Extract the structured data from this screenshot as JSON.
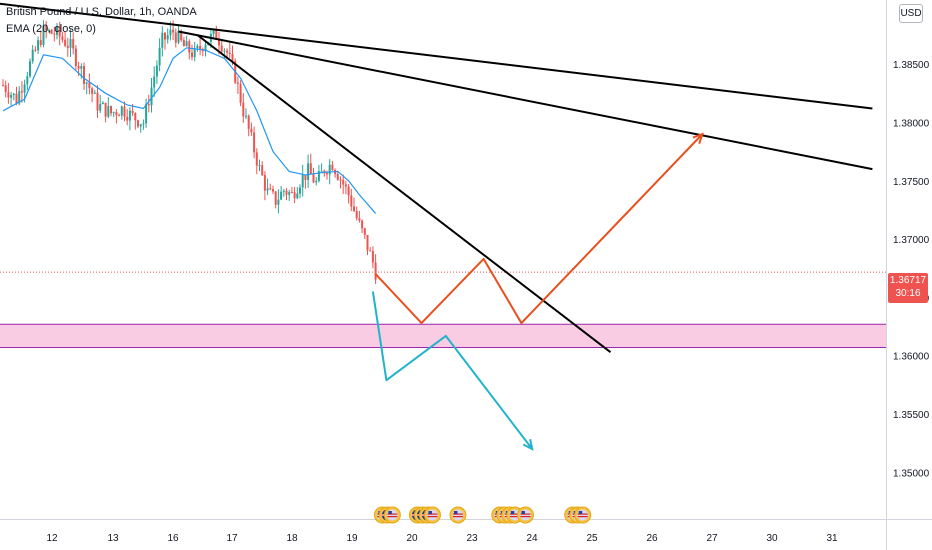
{
  "legend": {
    "title": "British Pound / U.S. Dollar, 1h, OANDA",
    "indicator": "EMA (20, close, 0)"
  },
  "currency_button": "USD",
  "price_tag": {
    "price": "1.36717",
    "countdown": "30:16"
  },
  "colors": {
    "up_candle": "#26a69a",
    "down_candle": "#ef5350",
    "ema_line": "#2196f3",
    "trendline": "#000000",
    "projection_up": "#e8501e",
    "projection_down": "#22b3cc",
    "zone_fill": "#f8bbd9",
    "zone_border": "#9c27b0",
    "last_price_line": "#ef5350"
  },
  "chart_data": {
    "type": "candlestick",
    "instrument": "British Pound / U.S. Dollar",
    "timeframe": "1h",
    "exchange": "OANDA",
    "ylim": [
      1.346,
      1.3905
    ],
    "y_ticks": [
      "1.38500",
      "1.38000",
      "1.37500",
      "1.37000",
      "1.36500",
      "1.36000",
      "1.35500",
      "1.35000"
    ],
    "x_ticks": [
      "12",
      "13",
      "16",
      "17",
      "18",
      "19",
      "20",
      "23",
      "24",
      "25",
      "26",
      "27",
      "30",
      "31"
    ],
    "last_price": 1.36717,
    "price_path": [
      [
        0,
        1.3832
      ],
      [
        5,
        1.382
      ],
      [
        10,
        1.385
      ],
      [
        15,
        1.3878
      ],
      [
        20,
        1.3876
      ],
      [
        25,
        1.3865
      ],
      [
        30,
        1.384
      ],
      [
        35,
        1.3815
      ],
      [
        40,
        1.3808
      ],
      [
        44,
        1.3812
      ],
      [
        48,
        1.3805
      ],
      [
        52,
        1.38
      ],
      [
        55,
        1.383
      ],
      [
        59,
        1.387
      ],
      [
        63,
        1.3878
      ],
      [
        67,
        1.3865
      ],
      [
        71,
        1.3858
      ],
      [
        75,
        1.387
      ],
      [
        79,
        1.3875
      ],
      [
        83,
        1.386
      ],
      [
        86,
        1.384
      ],
      [
        89,
        1.381
      ],
      [
        92,
        1.3785
      ],
      [
        95,
        1.376
      ],
      [
        98,
        1.374
      ],
      [
        101,
        1.3733
      ],
      [
        104,
        1.3742
      ],
      [
        107,
        1.3738
      ],
      [
        110,
        1.375
      ],
      [
        113,
        1.3758
      ],
      [
        116,
        1.3748
      ],
      [
        119,
        1.376
      ],
      [
        122,
        1.3765
      ],
      [
        125,
        1.3752
      ],
      [
        128,
        1.3738
      ],
      [
        131,
        1.3718
      ],
      [
        134,
        1.37
      ],
      [
        137,
        1.368
      ],
      [
        138,
        1.3672
      ]
    ],
    "ema": [
      [
        0,
        1.381
      ],
      [
        8,
        1.382
      ],
      [
        15,
        1.3858
      ],
      [
        22,
        1.3855
      ],
      [
        30,
        1.3838
      ],
      [
        38,
        1.3825
      ],
      [
        46,
        1.3815
      ],
      [
        52,
        1.3812
      ],
      [
        58,
        1.383
      ],
      [
        63,
        1.3855
      ],
      [
        68,
        1.3864
      ],
      [
        75,
        1.3862
      ],
      [
        82,
        1.3855
      ],
      [
        88,
        1.3838
      ],
      [
        94,
        1.381
      ],
      [
        100,
        1.3775
      ],
      [
        106,
        1.3758
      ],
      [
        112,
        1.3755
      ],
      [
        118,
        1.3757
      ],
      [
        124,
        1.3758
      ],
      [
        128,
        1.375
      ],
      [
        132,
        1.3738
      ],
      [
        138,
        1.3722
      ]
    ],
    "trendlines": [
      {
        "from": [
          -2,
          1.3902
        ],
        "to": [
          322,
          1.3812
        ]
      },
      {
        "from": [
          65,
          1.3878
        ],
        "to": [
          322,
          1.376
        ]
      },
      {
        "from": [
          72,
          1.3875
        ],
        "to": [
          225,
          1.3603
        ]
      }
    ],
    "support_zone": [
      1.3607,
      1.3627
    ],
    "projection_up": [
      [
        138,
        1.367
      ],
      [
        155,
        1.3628
      ],
      [
        178,
        1.3683
      ],
      [
        192,
        1.3628
      ],
      [
        259,
        1.379
      ]
    ],
    "projection_down": [
      [
        137,
        1.3655
      ],
      [
        142,
        1.3579
      ],
      [
        164,
        1.3617
      ],
      [
        196,
        1.352
      ]
    ],
    "event_markers": [
      {
        "x": 140.5,
        "flags": [
          "us",
          "uk",
          "us"
        ]
      },
      {
        "x": 153.5,
        "flags": [
          "uk",
          "uk",
          "uk",
          "us"
        ]
      },
      {
        "x": 168.5,
        "flags": [
          "us"
        ]
      },
      {
        "x": 184,
        "flags": [
          "us",
          "us",
          "us",
          "us"
        ]
      },
      {
        "x": 193.5,
        "flags": [
          "us"
        ]
      },
      {
        "x": 211,
        "flags": [
          "us",
          "us",
          "us"
        ]
      }
    ]
  }
}
